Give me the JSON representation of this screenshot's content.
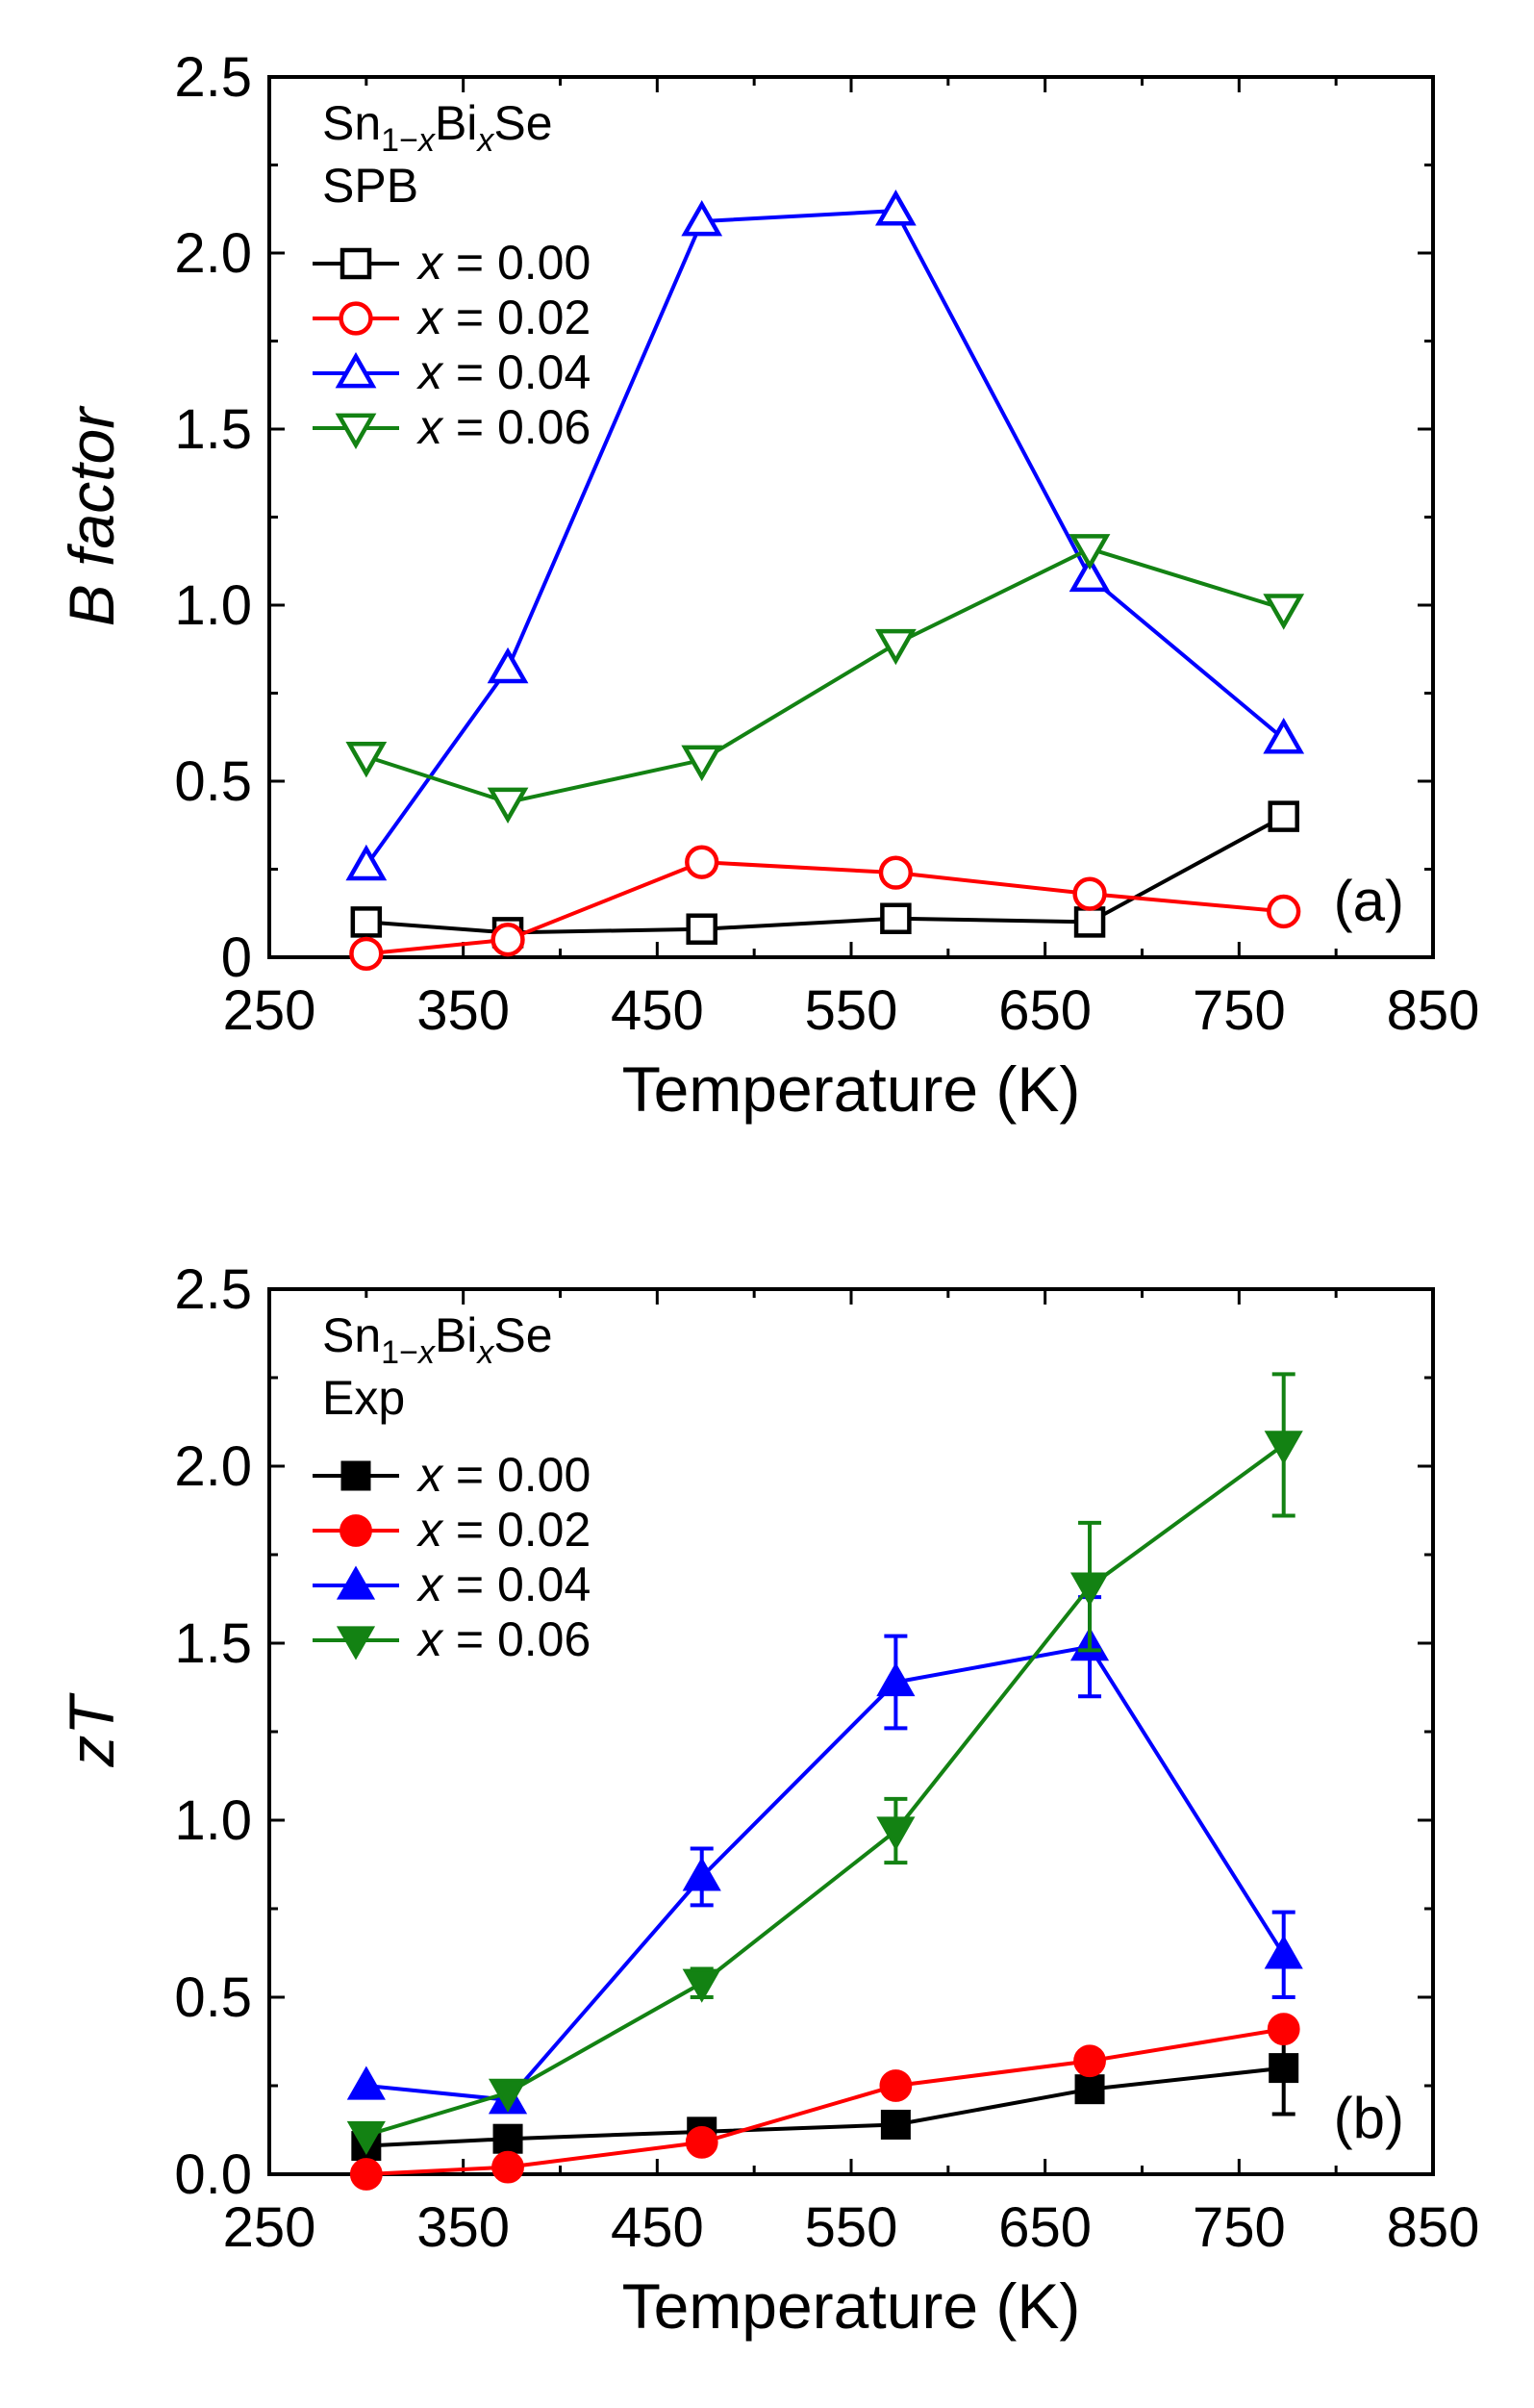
{
  "chart_data": [
    {
      "type": "line",
      "panel_label": "(a)",
      "title": "",
      "xlabel": "Temperature  (K)",
      "ylabel_italic": "B",
      "ylabel_rest": " factor",
      "xlim": [
        250,
        850
      ],
      "ylim": [
        0,
        2.5
      ],
      "x_ticks": [
        250,
        350,
        450,
        550,
        650,
        750,
        850
      ],
      "x_tick_labels": [
        "250",
        "350",
        "450",
        "550",
        "650",
        "750",
        "850"
      ],
      "y_ticks": [
        0,
        0.5,
        1.0,
        1.5,
        2.0,
        2.5
      ],
      "y_tick_labels": [
        "0",
        "0.5",
        "1.0",
        "1.5",
        "2.0",
        "2.5"
      ],
      "legend": {
        "title_parts": {
          "base": "Sn",
          "sub1": "1−",
          "subx": "x",
          "mid": "Bi",
          "subx2": "x",
          "end": "Se"
        },
        "subtitle": "SPB",
        "placement": "top-left"
      },
      "series": [
        {
          "name": "x = 0.00",
          "label_var": "x",
          "label_rest": " = 0.00",
          "color": "#000000",
          "marker": "square",
          "filled": false,
          "x": [
            300,
            373,
            473,
            573,
            673,
            773
          ],
          "y": [
            0.1,
            0.07,
            0.08,
            0.11,
            0.1,
            0.4
          ]
        },
        {
          "name": "x = 0.02",
          "label_var": "x",
          "label_rest": " = 0.02",
          "color": "#ff0000",
          "marker": "circle",
          "filled": false,
          "x": [
            300,
            373,
            473,
            573,
            673,
            773
          ],
          "y": [
            0.01,
            0.05,
            0.27,
            0.24,
            0.18,
            0.13
          ]
        },
        {
          "name": "x = 0.04",
          "label_var": "x",
          "label_rest": " = 0.04",
          "color": "#0000ff",
          "marker": "triangle-up",
          "filled": false,
          "x": [
            300,
            373,
            473,
            573,
            673,
            773
          ],
          "y": [
            0.26,
            0.82,
            2.09,
            2.12,
            1.08,
            0.62
          ]
        },
        {
          "name": "x = 0.06",
          "label_var": "x",
          "label_rest": " = 0.06",
          "color": "#138213",
          "marker": "triangle-down",
          "filled": false,
          "x": [
            300,
            373,
            473,
            573,
            673,
            773
          ],
          "y": [
            0.57,
            0.44,
            0.56,
            0.89,
            1.16,
            0.99
          ]
        }
      ]
    },
    {
      "type": "line",
      "panel_label": "(b)",
      "title": "",
      "xlabel": "Temperature  (K)",
      "ylabel_italic": "zT",
      "ylabel_rest": "",
      "xlim": [
        250,
        850
      ],
      "ylim": [
        0,
        2.5
      ],
      "x_ticks": [
        250,
        350,
        450,
        550,
        650,
        750,
        850
      ],
      "x_tick_labels": [
        "250",
        "350",
        "450",
        "550",
        "650",
        "750",
        "850"
      ],
      "y_ticks": [
        0,
        0.5,
        1.0,
        1.5,
        2.0,
        2.5
      ],
      "y_tick_labels": [
        "0.0",
        "0.5",
        "1.0",
        "1.5",
        "2.0",
        "2.5"
      ],
      "legend": {
        "title_parts": {
          "base": "Sn",
          "sub1": "1−",
          "subx": "x",
          "mid": "Bi",
          "subx2": "x",
          "end": "Se"
        },
        "subtitle": "Exp",
        "placement": "top-left"
      },
      "series": [
        {
          "name": "x = 0.00",
          "label_var": "x",
          "label_rest": " = 0.00",
          "color": "#000000",
          "marker": "square",
          "filled": true,
          "x": [
            300,
            373,
            473,
            573,
            673,
            773
          ],
          "y": [
            0.08,
            0.1,
            0.12,
            0.14,
            0.24,
            0.3
          ],
          "err": [
            0,
            0,
            0,
            0,
            0,
            0.13
          ]
        },
        {
          "name": "x = 0.02",
          "label_var": "x",
          "label_rest": " = 0.02",
          "color": "#ff0000",
          "marker": "circle",
          "filled": true,
          "x": [
            300,
            373,
            473,
            573,
            673,
            773
          ],
          "y": [
            0.0,
            0.02,
            0.09,
            0.25,
            0.32,
            0.41
          ],
          "err": [
            0,
            0,
            0,
            0,
            0,
            0
          ]
        },
        {
          "name": "x = 0.04",
          "label_var": "x",
          "label_rest": " = 0.04",
          "color": "#0000ff",
          "marker": "triangle-up",
          "filled": true,
          "x": [
            300,
            373,
            473,
            573,
            673,
            773
          ],
          "y": [
            0.25,
            0.21,
            0.84,
            1.39,
            1.49,
            0.62
          ],
          "err": [
            0,
            0,
            0.08,
            0.13,
            0.14,
            0.12
          ]
        },
        {
          "name": "x = 0.06",
          "label_var": "x",
          "label_rest": " = 0.06",
          "color": "#138213",
          "marker": "triangle-down",
          "filled": true,
          "x": [
            300,
            373,
            473,
            573,
            673,
            773
          ],
          "y": [
            0.11,
            0.23,
            0.54,
            0.97,
            1.66,
            2.06
          ],
          "err": [
            0,
            0,
            0.04,
            0.09,
            0.18,
            0.2
          ]
        }
      ]
    }
  ]
}
